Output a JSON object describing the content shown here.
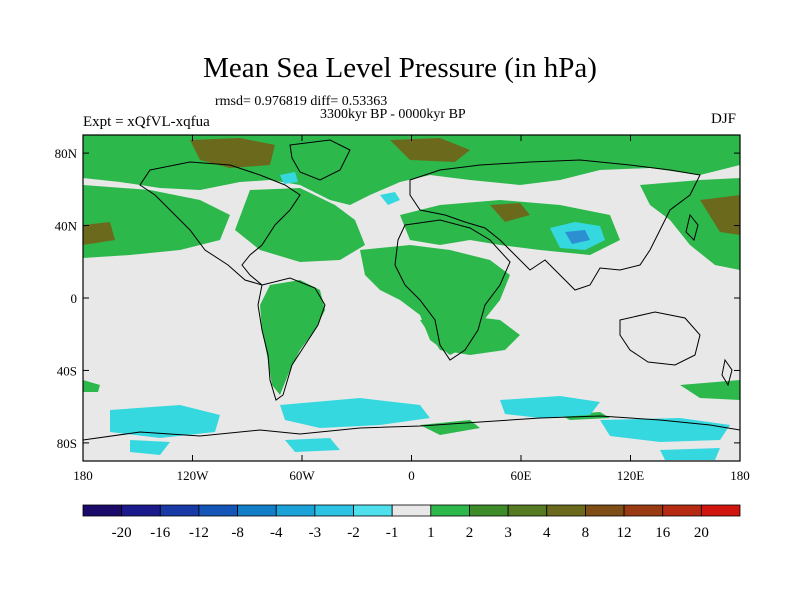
{
  "title": "Mean Sea Level Pressure (in hPa)",
  "stats": "rmsd= 0.976819 diff= 0.53363",
  "period": "3300kyr BP - 0000kyr BP",
  "experiment": "Expt = xQfVL-xqfua",
  "season": "DJF",
  "map": {
    "lon_range": [
      -180,
      180
    ],
    "lat_range": [
      -90,
      90
    ],
    "x_ticks": [
      {
        "value": -180,
        "label": "180"
      },
      {
        "value": -120,
        "label": "120W"
      },
      {
        "value": -60,
        "label": "60W"
      },
      {
        "value": 0,
        "label": "0"
      },
      {
        "value": 60,
        "label": "60E"
      },
      {
        "value": 120,
        "label": "120E"
      },
      {
        "value": 180,
        "label": "180"
      }
    ],
    "y_ticks": [
      {
        "value": 80,
        "label": "80N"
      },
      {
        "value": 40,
        "label": "40N"
      },
      {
        "value": 0,
        "label": "0"
      },
      {
        "value": -40,
        "label": "40S"
      },
      {
        "value": -80,
        "label": "80S"
      }
    ],
    "colors": {
      "background": "#e8e8e8",
      "pos1": "#2db84c",
      "pos2": "#3e8b2a",
      "pos3": "#6b6a1c",
      "neg1": "#36d8e0",
      "neg2": "#2b8fd2",
      "coast": "#000000"
    }
  },
  "colorbar": {
    "colors": [
      "#1b0a6a",
      "#1a1a8c",
      "#173aa6",
      "#1456b8",
      "#137ec8",
      "#1ba2d8",
      "#2dc2e4",
      "#4ee0ec",
      "#e8e8e8",
      "#2db84c",
      "#3e8b2a",
      "#557a22",
      "#6b6a1c",
      "#7f4e16",
      "#9a3a12",
      "#b52a10",
      "#d0140e"
    ],
    "labels": [
      "-20",
      "-16",
      "-12",
      "-8",
      "-4",
      "-3",
      "-2",
      "-1",
      "1",
      "2",
      "3",
      "4",
      "8",
      "12",
      "16",
      "20"
    ]
  }
}
